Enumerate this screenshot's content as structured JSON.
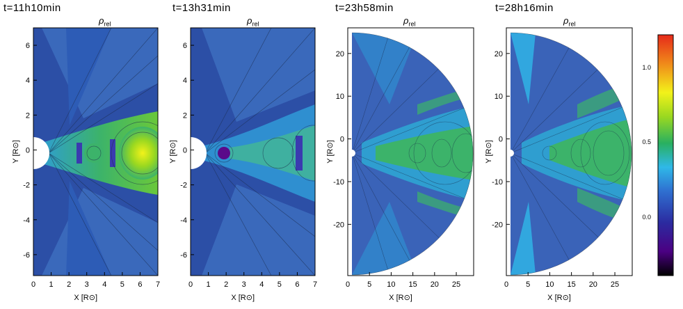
{
  "panels": [
    {
      "time": "t=11h10min",
      "quantity": "ρ",
      "quantity_sub": "rel",
      "x_ticks": [
        "0",
        "1",
        "2",
        "3",
        "4",
        "5",
        "6",
        "7"
      ],
      "y_ticks": [
        "6",
        "4",
        "2",
        "0",
        "-2",
        "-4",
        "-6"
      ],
      "xlabel": "X [R⊙]",
      "ylabel": "Y [R⊙]",
      "shape": "rectangular"
    },
    {
      "time": "t=13h31min",
      "quantity": "ρ",
      "quantity_sub": "rel",
      "x_ticks": [
        "0",
        "1",
        "2",
        "3",
        "4",
        "5",
        "6",
        "7"
      ],
      "y_ticks": [
        "6",
        "4",
        "2",
        "0",
        "-2",
        "-4",
        "-6"
      ],
      "xlabel": "X [R⊙]",
      "ylabel": "Y [R⊙]",
      "shape": "rectangular"
    },
    {
      "time": "t=23h58min",
      "quantity": "ρ",
      "quantity_sub": "rel",
      "x_ticks": [
        "0",
        "5",
        "10",
        "15",
        "20",
        "25"
      ],
      "y_ticks": [
        "20",
        "10",
        "0",
        "-10",
        "-20"
      ],
      "xlabel": "X [R⊙]",
      "ylabel": "Y [R⊙]",
      "shape": "half-disk"
    },
    {
      "time": "t=28h16min",
      "quantity": "ρ",
      "quantity_sub": "rel",
      "x_ticks": [
        "0",
        "5",
        "10",
        "15",
        "20",
        "25"
      ],
      "y_ticks": [
        "20",
        "10",
        "0",
        "-10",
        "-20"
      ],
      "xlabel": "X [R⊙]",
      "ylabel": "Y [R⊙]",
      "shape": "half-disk"
    }
  ],
  "colorbar": {
    "labels": [
      "1.0",
      "0.5",
      "0.0"
    ],
    "colors": [
      "#000000",
      "#4b0082",
      "#2b2ba0",
      "#2f6fd0",
      "#2fb8e8",
      "#29b060",
      "#9ad820",
      "#f2f21a",
      "#f08a1a",
      "#e62a1a"
    ]
  },
  "colors": {
    "background_field": "#3a63b8",
    "streamer": "#3cb36a",
    "dense_core": "#e8e82a",
    "sun": "#ffffff"
  }
}
